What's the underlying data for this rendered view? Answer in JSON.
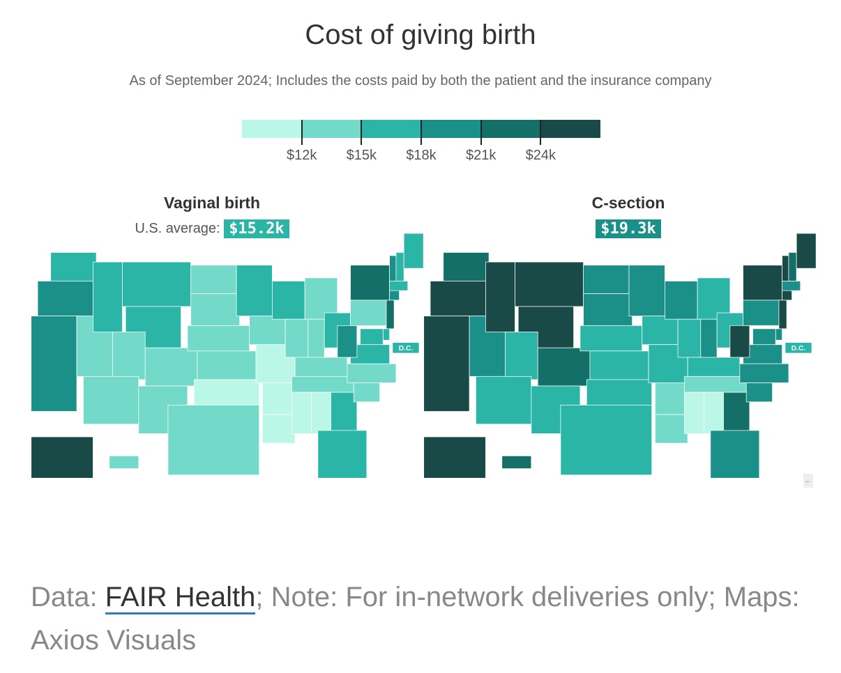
{
  "title": "Cost of giving birth",
  "subtitle": "As of September 2024; Includes the costs paid by both the patient and the insurance company",
  "legend": {
    "colors": [
      "#bbf7e6",
      "#73d9c8",
      "#2bb5a6",
      "#1a9088",
      "#146f69",
      "#1a4a48"
    ],
    "ticks": [
      "$12k",
      "$15k",
      "$18k",
      "$21k",
      "$24k"
    ]
  },
  "maps": [
    {
      "title": "Vaginal birth",
      "avg_label": "U.S. average:",
      "avg_value": "$15.2k",
      "badge_color": "#2bb5a6",
      "dc_label": "D.C.",
      "bins": {
        "WA": 2,
        "OR": 3,
        "CA": 3,
        "ID": 2,
        "NV": 1,
        "MT": 2,
        "WY": 2,
        "UT": 1,
        "AZ": 1,
        "CO": 1,
        "NM": 1,
        "ND": 1,
        "SD": 1,
        "NE": 1,
        "KS": 1,
        "OK": 0,
        "TX": 1,
        "MN": 2,
        "IA": 1,
        "MO": 0,
        "AR": 0,
        "LA": 0,
        "WI": 2,
        "IL": 1,
        "MI": 1,
        "IN": 1,
        "OH": 2,
        "KY": 1,
        "TN": 1,
        "MS": 0,
        "AL": 0,
        "GA": 2,
        "FL": 2,
        "SC": 1,
        "NC": 1,
        "VA": 2,
        "WV": 3,
        "PA": 1,
        "NY": 4,
        "VT": 3,
        "NH": 2,
        "ME": 2,
        "MA": 2,
        "CT": 3,
        "NJ": 4,
        "DE": 2,
        "MD": 2,
        "AK": 5,
        "HI": 1
      }
    },
    {
      "title": "C-section",
      "avg_label": "",
      "avg_value": "$19.3k",
      "badge_color": "#1a9088",
      "dc_label": "D.C.",
      "bins": {
        "WA": 4,
        "OR": 5,
        "CA": 5,
        "ID": 5,
        "NV": 3,
        "MT": 5,
        "WY": 5,
        "UT": 2,
        "AZ": 2,
        "CO": 4,
        "NM": 2,
        "ND": 3,
        "SD": 3,
        "NE": 2,
        "KS": 2,
        "OK": 2,
        "TX": 2,
        "MN": 3,
        "IA": 2,
        "MO": 2,
        "AR": 1,
        "LA": 1,
        "WI": 3,
        "IL": 2,
        "MI": 2,
        "IN": 3,
        "OH": 2,
        "KY": 2,
        "TN": 1,
        "MS": 0,
        "AL": 0,
        "GA": 4,
        "FL": 3,
        "SC": 3,
        "NC": 3,
        "VA": 3,
        "WV": 5,
        "PA": 3,
        "NY": 5,
        "VT": 5,
        "NH": 4,
        "ME": 5,
        "MA": 3,
        "CT": 5,
        "NJ": 5,
        "DE": 3,
        "MD": 3,
        "AK": 5,
        "HI": 4
      }
    }
  ],
  "footer": {
    "prefix": "Data: ",
    "link": "FAIR Health",
    "rest": "; Note: For in-network deliveries only; Maps: Axios Visuals"
  },
  "scroll_icon": "←"
}
